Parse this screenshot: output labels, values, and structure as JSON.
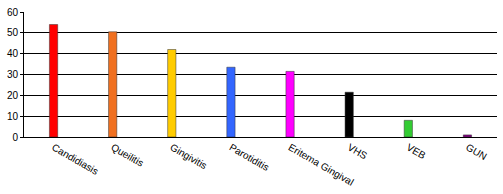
{
  "chart_data": {
    "type": "bar",
    "categories": [
      "Candidiasis",
      "Queilitis",
      "Gingivitis",
      "Parotiditis",
      "Eritema Gingival",
      "VHS",
      "VEB",
      "GUN"
    ],
    "values": [
      54,
      50.5,
      42,
      33.5,
      31.5,
      21.5,
      8,
      1
    ],
    "colors": [
      "#ff0000",
      "#f07020",
      "#ffcc00",
      "#3366ff",
      "#ff00ff",
      "#000000",
      "#33cc33",
      "#800080"
    ],
    "ylim": [
      0,
      60
    ],
    "yticks": [
      0,
      10,
      20,
      30,
      40,
      50,
      60
    ],
    "grid": true
  }
}
